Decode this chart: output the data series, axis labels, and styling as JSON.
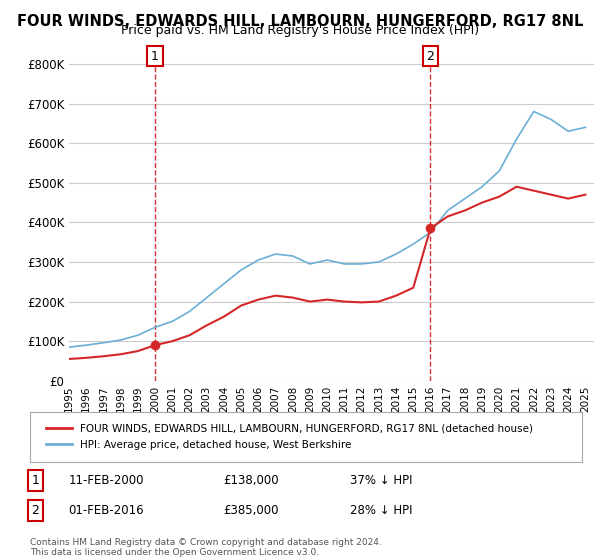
{
  "title": "FOUR WINDS, EDWARDS HILL, LAMBOURN, HUNGERFORD, RG17 8NL",
  "subtitle": "Price paid vs. HM Land Registry's House Price Index (HPI)",
  "ylabel_ticks": [
    "£0",
    "£100K",
    "£200K",
    "£300K",
    "£400K",
    "£500K",
    "£600K",
    "£700K",
    "£800K"
  ],
  "ytick_vals": [
    0,
    100000,
    200000,
    300000,
    400000,
    500000,
    600000,
    700000,
    800000
  ],
  "ylim": [
    0,
    820000
  ],
  "hpi_color": "#6baed6",
  "price_color": "#d62728",
  "vline_color": "#cc0000",
  "marker1_date_idx": 5.2,
  "marker2_date_idx": 21.2,
  "marker1_label": "1",
  "marker2_label": "2",
  "annotation1": "11-FEB-2000     £138,000     37% ↓ HPI",
  "annotation2": "01-FEB-2016     £385,000     28% ↓ HPI",
  "legend_line1": "FOUR WINDS, EDWARDS HILL, LAMBOURN, HUNGERFORD, RG17 8NL (detached house)",
  "legend_line2": "HPI: Average price, detached house, West Berkshire",
  "footnote": "Contains HM Land Registry data © Crown copyright and database right 2024.\nThis data is licensed under the Open Government Licence v3.0.",
  "background_color": "#ffffff",
  "grid_color": "#cccccc",
  "x_years": [
    1995,
    1996,
    1997,
    1998,
    1999,
    2000,
    2001,
    2002,
    2003,
    2004,
    2005,
    2006,
    2007,
    2008,
    2009,
    2010,
    2011,
    2012,
    2013,
    2014,
    2015,
    2016,
    2017,
    2018,
    2019,
    2020,
    2021,
    2022,
    2023,
    2024,
    2025
  ],
  "hpi_values": [
    85000,
    90000,
    96000,
    103000,
    115000,
    135000,
    150000,
    175000,
    210000,
    245000,
    280000,
    305000,
    320000,
    315000,
    295000,
    305000,
    295000,
    295000,
    300000,
    320000,
    345000,
    375000,
    430000,
    460000,
    490000,
    530000,
    610000,
    680000,
    660000,
    630000,
    640000
  ],
  "price_values_x": [
    1995,
    1996,
    1997,
    1998,
    1999,
    2000,
    2001,
    2002,
    2003,
    2004,
    2005,
    2006,
    2007,
    2008,
    2009,
    2010,
    2011,
    2012,
    2013,
    2014,
    2015,
    2016,
    2017,
    2018,
    2019,
    2020,
    2021,
    2022,
    2023,
    2024,
    2025
  ],
  "price_values_y": [
    55000,
    58000,
    62000,
    67000,
    75000,
    90000,
    100000,
    115000,
    140000,
    162000,
    190000,
    205000,
    215000,
    210000,
    200000,
    205000,
    200000,
    198000,
    200000,
    215000,
    235000,
    385000,
    415000,
    430000,
    450000,
    465000,
    490000,
    480000,
    470000,
    460000,
    470000
  ]
}
